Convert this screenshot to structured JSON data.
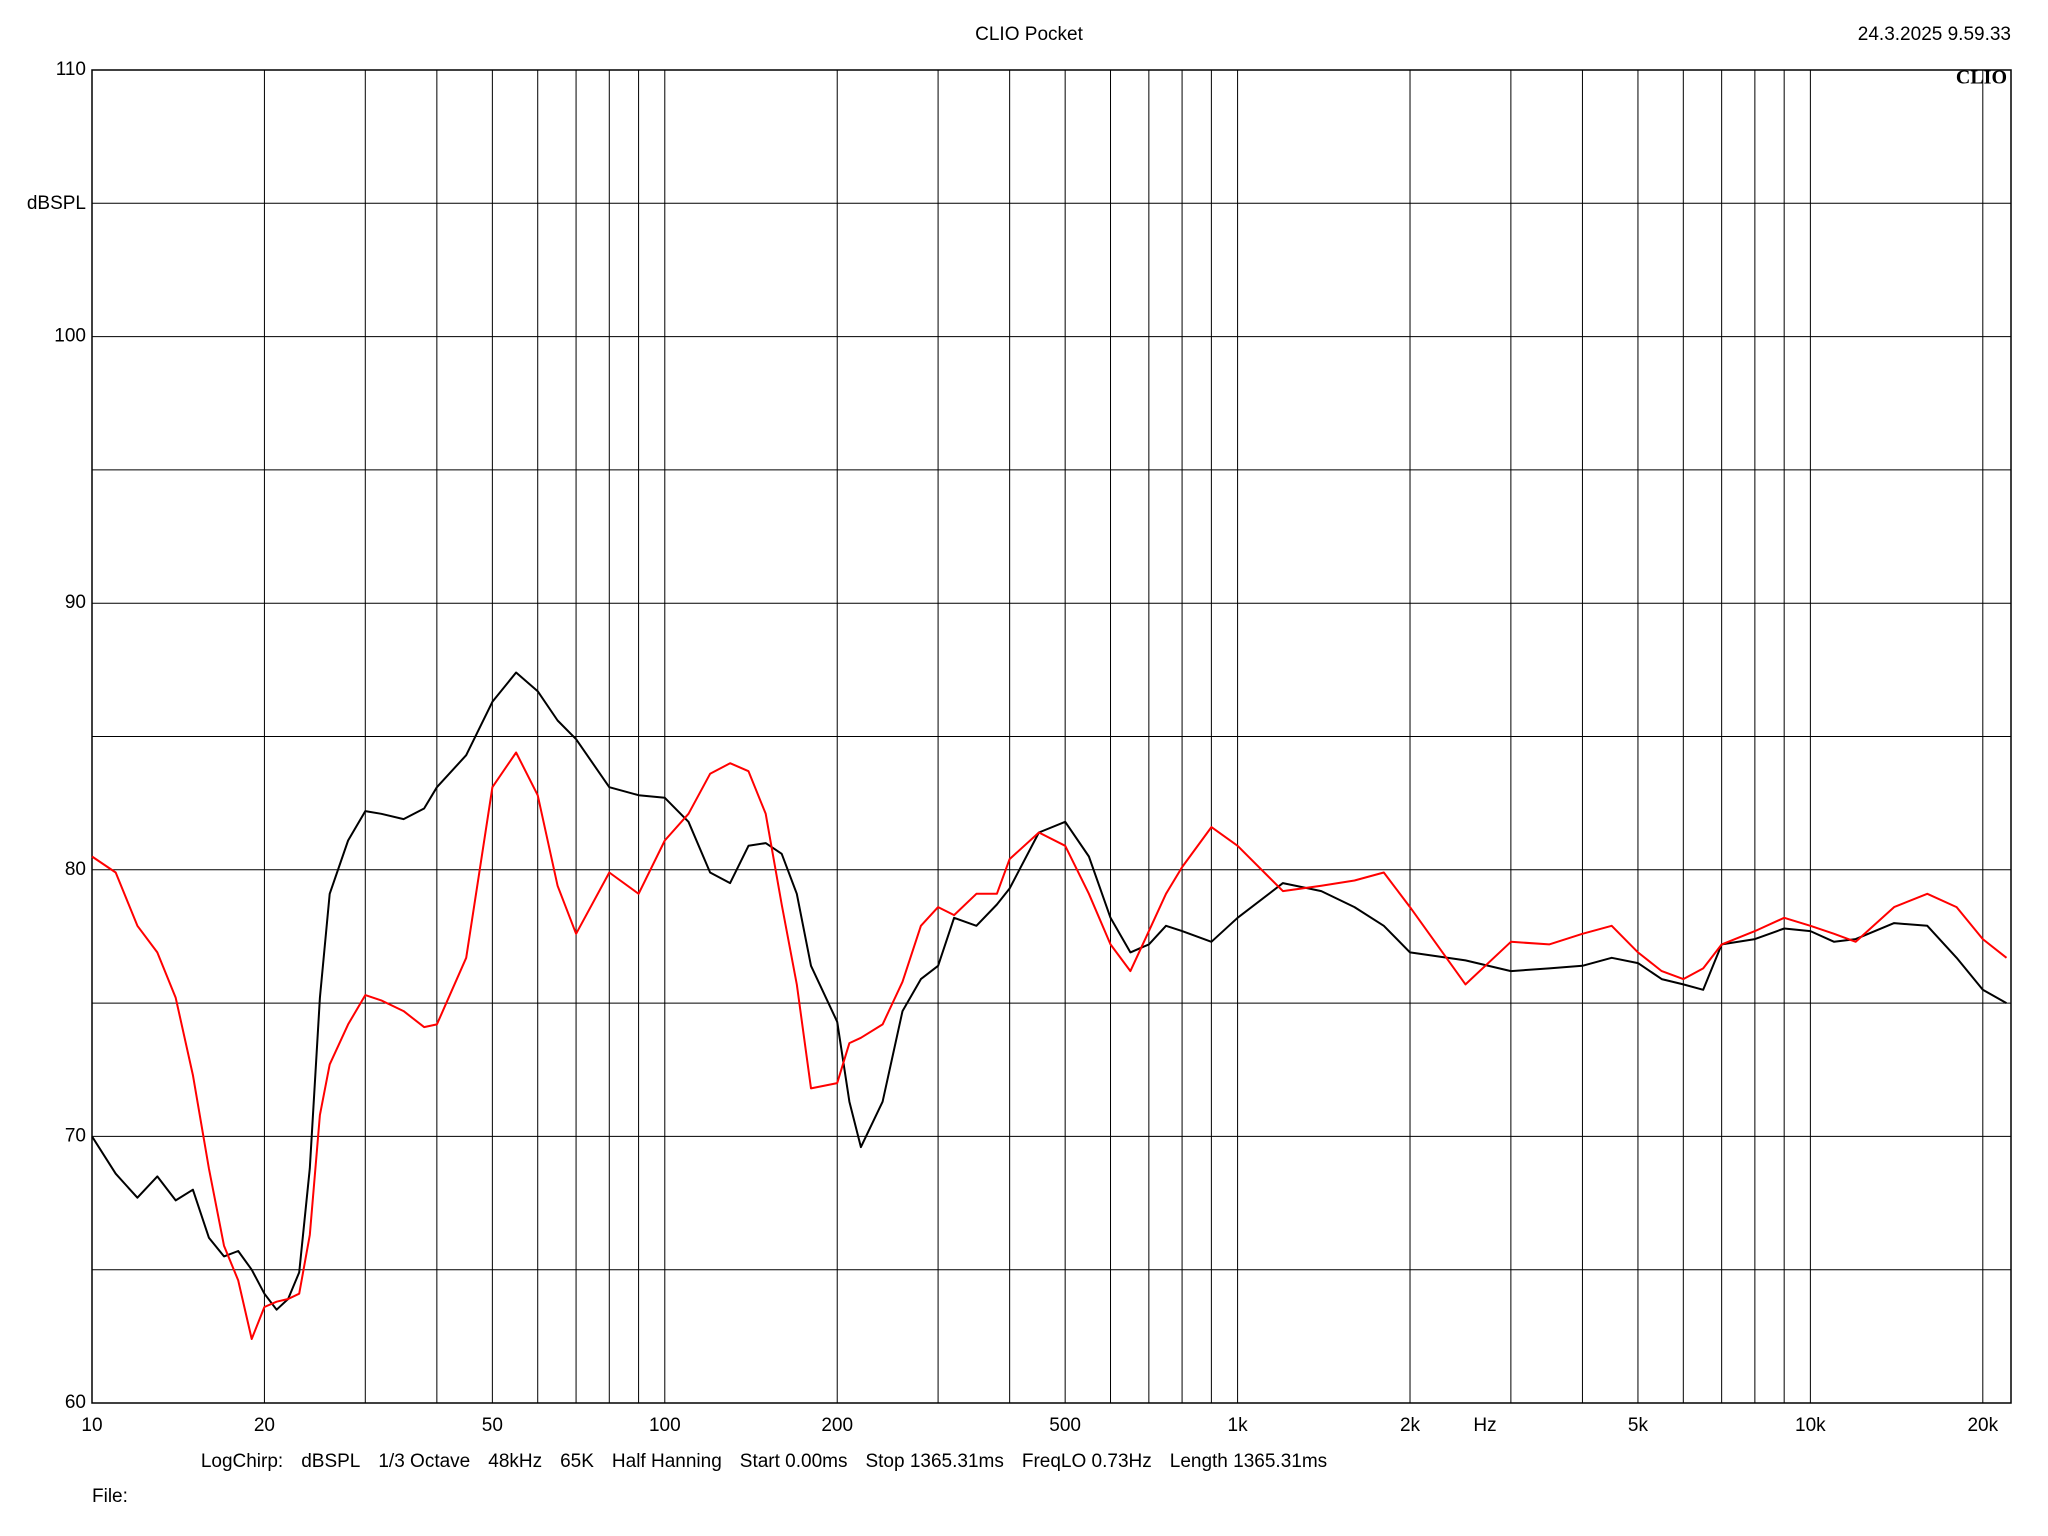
{
  "chart_data": {
    "type": "line",
    "title": "CLIO Pocket",
    "timestamp": "24.3.2025 9.59.33",
    "logo": "CLIO",
    "y_label": "dBSPL",
    "x_label": "Hz",
    "footer": [
      "LogChirp:",
      "dBSPL",
      "1/3 Octave",
      "48kHz",
      "65K",
      "Half Hanning",
      "Start 0.00ms",
      "Stop 1365.31ms",
      "FreqLO 0.73Hz",
      "Length 1365.31ms"
    ],
    "file_label": "File:",
    "x_log": true,
    "grid": true,
    "xlim": [
      10,
      22400
    ],
    "xticks": [
      10,
      20,
      50,
      100,
      200,
      500,
      {
        "value": 1000,
        "label": "1k"
      },
      {
        "value": 2000,
        "label": "2k"
      },
      {
        "value": 5000,
        "label": "5k"
      },
      {
        "value": 10000,
        "label": "10k"
      },
      {
        "value": 20000,
        "label": "20k"
      }
    ],
    "x_minor_grid": [
      30,
      40,
      60,
      70,
      80,
      90,
      300,
      400,
      600,
      700,
      800,
      900,
      3000,
      4000,
      6000,
      7000,
      8000,
      9000
    ],
    "ylim": [
      60,
      110
    ],
    "yticks": [
      60,
      70,
      80,
      90,
      100,
      110
    ],
    "y_minor_grid": [
      65,
      75,
      85,
      95,
      105
    ],
    "x": [
      10,
      11,
      12,
      13,
      14,
      15,
      16,
      17,
      18,
      19,
      20,
      21,
      22,
      23,
      24,
      25,
      26,
      28,
      30,
      32,
      35,
      38,
      40,
      45,
      50,
      55,
      60,
      65,
      70,
      80,
      90,
      100,
      110,
      120,
      130,
      140,
      150,
      160,
      170,
      180,
      200,
      210,
      220,
      240,
      260,
      280,
      300,
      320,
      350,
      380,
      400,
      450,
      500,
      550,
      600,
      650,
      700,
      750,
      800,
      900,
      1000,
      1200,
      1400,
      1600,
      1800,
      2000,
      2500,
      3000,
      3500,
      4000,
      4500,
      5000,
      5500,
      6000,
      6500,
      7000,
      8000,
      9000,
      10000,
      11000,
      12000,
      14000,
      16000,
      18000,
      20000,
      22000
    ],
    "series": [
      {
        "color": "#000000",
        "values": [
          70.0,
          68.6,
          67.7,
          68.5,
          67.6,
          68.0,
          66.2,
          65.5,
          65.7,
          65.0,
          64.1,
          63.5,
          63.9,
          64.9,
          68.8,
          75.2,
          79.1,
          81.1,
          82.2,
          82.1,
          81.9,
          82.3,
          83.1,
          84.3,
          86.3,
          87.4,
          86.7,
          85.6,
          84.9,
          83.1,
          82.8,
          82.7,
          81.8,
          79.9,
          79.5,
          80.9,
          81.0,
          80.6,
          79.1,
          76.4,
          74.3,
          71.3,
          69.6,
          71.3,
          74.7,
          75.9,
          76.4,
          78.2,
          77.9,
          78.7,
          79.3,
          81.4,
          81.8,
          80.5,
          78.2,
          76.9,
          77.2,
          77.9,
          77.7,
          77.3,
          78.2,
          79.5,
          79.2,
          78.6,
          77.9,
          76.9,
          76.6,
          76.2,
          76.3,
          76.4,
          76.7,
          76.5,
          75.9,
          75.7,
          75.5,
          77.2,
          77.4,
          77.8,
          77.7,
          77.3,
          77.4,
          78.0,
          77.9,
          76.7,
          75.5,
          75.0
        ]
      },
      {
        "color": "#ff0000",
        "values": [
          80.5,
          79.9,
          77.9,
          76.9,
          75.2,
          72.3,
          68.8,
          65.9,
          64.6,
          62.4,
          63.6,
          63.8,
          63.9,
          64.1,
          66.3,
          70.8,
          72.7,
          74.2,
          75.3,
          75.1,
          74.7,
          74.1,
          74.2,
          76.7,
          83.1,
          84.4,
          82.8,
          79.4,
          77.6,
          79.9,
          79.1,
          81.1,
          82.1,
          83.6,
          84.0,
          83.7,
          82.1,
          78.7,
          75.7,
          71.8,
          72.0,
          73.5,
          73.7,
          74.2,
          75.8,
          77.9,
          78.6,
          78.3,
          79.1,
          79.1,
          80.4,
          81.4,
          80.9,
          79.1,
          77.2,
          76.2,
          77.7,
          79.1,
          80.1,
          81.6,
          80.9,
          79.2,
          79.4,
          79.6,
          79.9,
          78.6,
          75.7,
          77.3,
          77.2,
          77.6,
          77.9,
          76.9,
          76.2,
          75.9,
          76.3,
          77.2,
          77.7,
          78.2,
          77.9,
          77.6,
          77.3,
          78.6,
          79.1,
          78.6,
          77.4,
          76.7
        ]
      }
    ]
  }
}
